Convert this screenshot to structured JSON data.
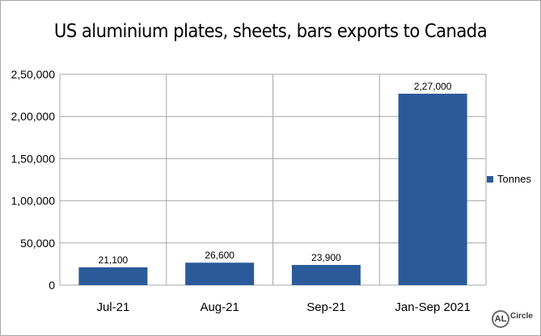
{
  "chart_data": {
    "type": "bar",
    "title": "US aluminium plates, sheets, bars exports to Canada",
    "categories": [
      "Jul-21",
      "Aug-21",
      "Sep-21",
      "Jan-Sep 2021"
    ],
    "series": [
      {
        "name": "Tonnes",
        "values": [
          21100,
          26600,
          23900,
          227000
        ],
        "color": "#2b5a9a"
      }
    ],
    "data_labels": [
      "21,100",
      "26,600",
      "23,900",
      "2,27,000"
    ],
    "ylim": [
      0,
      250000
    ],
    "yticks": [
      0,
      50000,
      100000,
      150000,
      200000,
      250000
    ],
    "ytick_labels": [
      "0",
      "50,000",
      "1,00,000",
      "1,50,000",
      "2,00,000",
      "2,50,000"
    ],
    "xlabel": "",
    "ylabel": "",
    "grid": true,
    "legend_position": "right"
  },
  "branding": {
    "logo_text": "AL",
    "logo_word": "Circle"
  }
}
